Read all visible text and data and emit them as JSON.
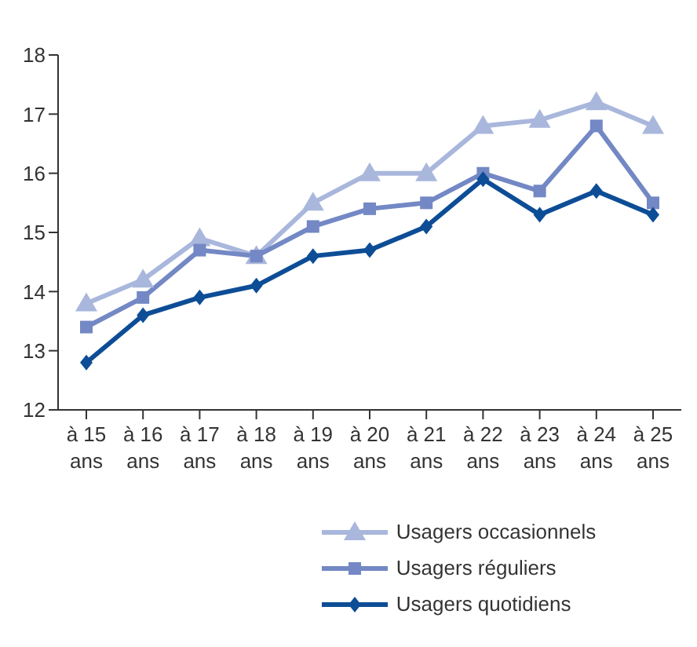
{
  "chart_data": {
    "type": "line",
    "categories": [
      "à 15 ans",
      "à 16 ans",
      "à 17 ans",
      "à 18 ans",
      "à 19 ans",
      "à 20 ans",
      "à 21 ans",
      "à 22 ans",
      "à 23 ans",
      "à 24 ans",
      "à 25 ans"
    ],
    "series": [
      {
        "name": "Usagers occasionnels",
        "color": "#a9b7dc",
        "marker": "triangle",
        "values": [
          13.8,
          14.2,
          14.9,
          14.6,
          15.5,
          16.0,
          16.0,
          16.8,
          16.9,
          17.2,
          16.8
        ]
      },
      {
        "name": "Usagers réguliers",
        "color": "#7388c4",
        "marker": "square",
        "values": [
          13.4,
          13.9,
          14.7,
          14.6,
          15.1,
          15.4,
          15.5,
          16.0,
          15.7,
          16.8,
          15.5
        ]
      },
      {
        "name": "Usagers quotidiens",
        "color": "#0d4d96",
        "marker": "diamond",
        "values": [
          12.8,
          13.6,
          13.9,
          14.1,
          14.6,
          14.7,
          15.1,
          15.9,
          15.3,
          15.7,
          15.3
        ]
      }
    ],
    "ylim": [
      12,
      18
    ],
    "yticks": [
      12,
      13,
      14,
      15,
      16,
      17,
      18
    ],
    "grid": false,
    "legend": "bottom"
  }
}
